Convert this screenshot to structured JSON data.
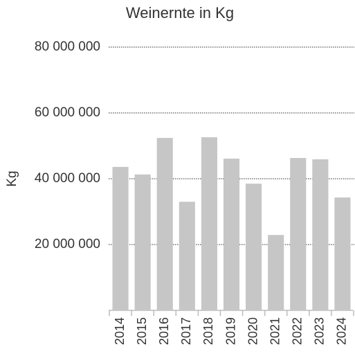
{
  "chart_data": {
    "type": "bar",
    "title": "Weinernte in Kg",
    "ylabel": "Kg",
    "categories": [
      "2014",
      "2015",
      "2016",
      "2017",
      "2018",
      "2019",
      "2020",
      "2021",
      "2022",
      "2023",
      "2024"
    ],
    "values": [
      43600000,
      41300000,
      52400000,
      33000000,
      52600000,
      46100000,
      38500000,
      22900000,
      46300000,
      45900000,
      34300000
    ],
    "color": "#c6c6c6",
    "ylim": [
      0,
      80000000
    ],
    "yticks": [
      {
        "value": 20000000,
        "label": "20 000 000"
      },
      {
        "value": 40000000,
        "label": "40 000 000"
      },
      {
        "value": 60000000,
        "label": "60 000 000"
      },
      {
        "value": 80000000,
        "label": "80 000 000"
      }
    ],
    "grid": true
  }
}
